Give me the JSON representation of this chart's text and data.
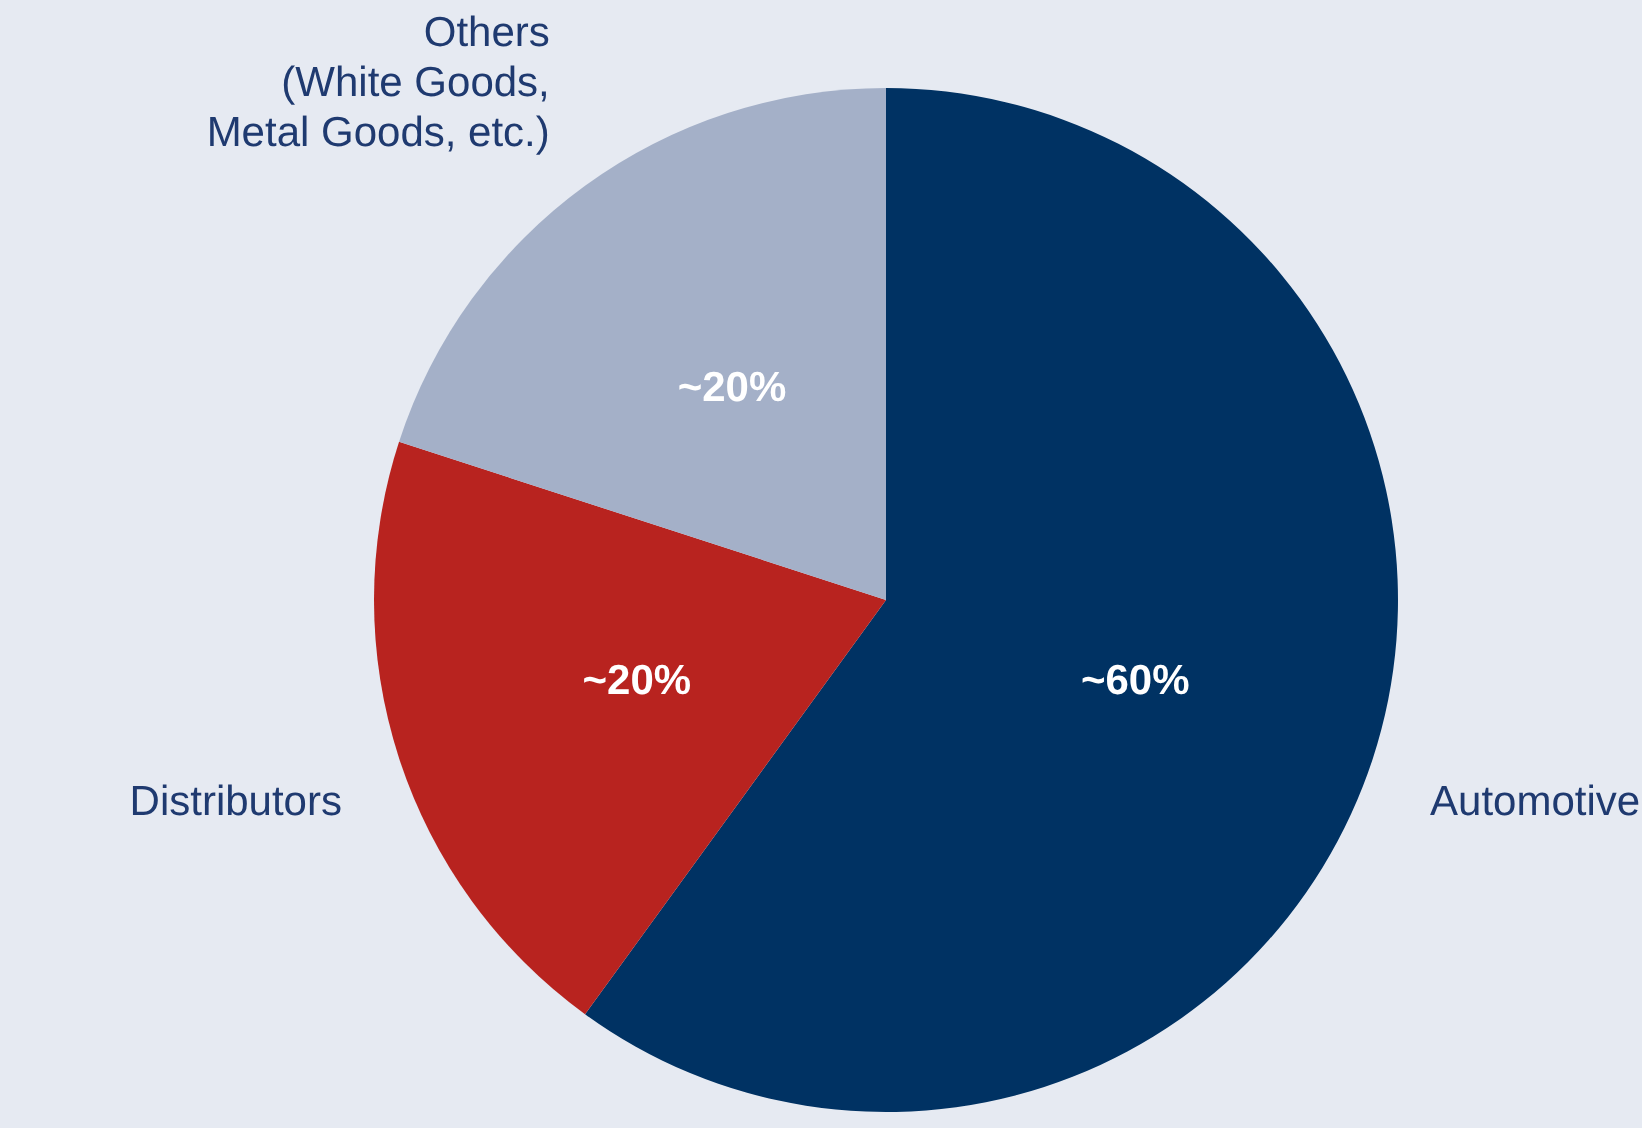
{
  "chart_data": {
    "type": "pie",
    "categories": [
      "Automotive",
      "Distributors",
      "Others\n(White Goods,\nMetal Goods, etc.)"
    ],
    "values": [
      60,
      20,
      20
    ],
    "colors": [
      "#003263",
      "#b8231f",
      "#a4b0c8"
    ],
    "value_labels": [
      "~60%",
      "~20%",
      "~20%"
    ],
    "legend": false
  }
}
